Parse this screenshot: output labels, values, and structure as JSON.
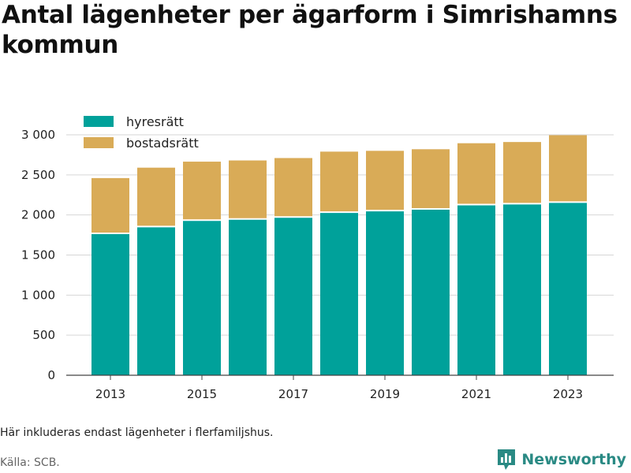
{
  "header": {
    "title": "Antal lägenheter per ägarform i Simrishamns kommun"
  },
  "footer": {
    "note": "Här inkluderas endast lägenheter i flerfamiljshus.",
    "source": "Källa: SCB.",
    "brand": "Newsworthy",
    "brand_icon": "bar-chart-logo-icon"
  },
  "chart_data": {
    "type": "bar",
    "stacked": true,
    "categories": [
      2013,
      2014,
      2015,
      2016,
      2017,
      2018,
      2019,
      2020,
      2021,
      2022,
      2023
    ],
    "series": [
      {
        "name": "hyresrätt",
        "color": "#00a19a",
        "values": [
          1770,
          1855,
          1935,
          1950,
          1975,
          2035,
          2055,
          2075,
          2130,
          2140,
          2160
        ]
      },
      {
        "name": "bostadsrätt",
        "color": "#d9ab57",
        "values": [
          690,
          735,
          730,
          730,
          735,
          755,
          745,
          745,
          765,
          770,
          835
        ]
      }
    ],
    "ylim": [
      0,
      3000
    ],
    "yticks": [
      0,
      500,
      1000,
      1500,
      2000,
      2500,
      3000
    ],
    "ytick_labels": [
      "0",
      "500",
      "1 000",
      "1 500",
      "2 000",
      "2 500",
      "3 000"
    ],
    "xtick_labels": [
      "2013",
      "2015",
      "2017",
      "2019",
      "2021",
      "2023"
    ],
    "grid": true,
    "legend_position": "top-left"
  }
}
